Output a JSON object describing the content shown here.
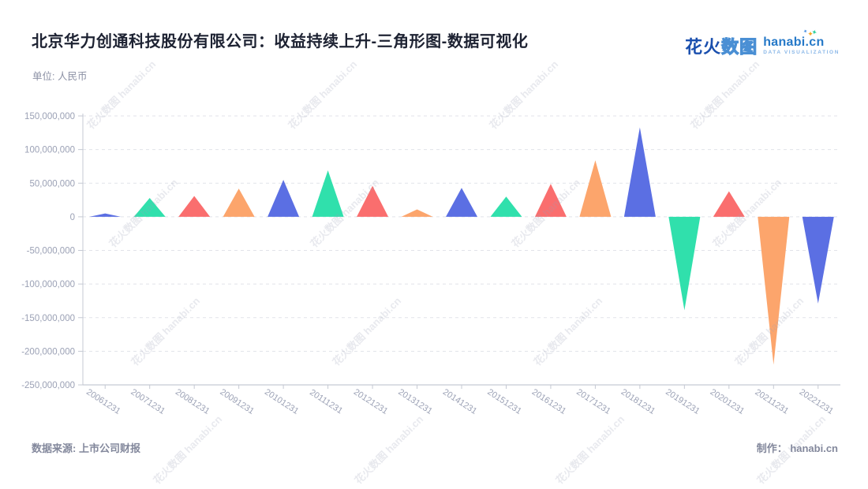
{
  "header": {
    "title": "北京华力创通科技股份有限公司：收益持续上升-三角形图-数据可视化",
    "subtitle": "单位: 人民币"
  },
  "logo": {
    "zh_primary": "花火",
    "zh_secondary": "数图",
    "domain": "hanabi.cn",
    "tagline": "DATA VISUALIZATION"
  },
  "watermark_text": "花火数图 hanabi.cn",
  "footer": {
    "source": "数据来源: 上市公司财报",
    "credit": "制作： hanabi.cn"
  },
  "chart_data": {
    "type": "bar",
    "variant": "triangle-marks",
    "title": "北京华力创通科技股份有限公司：收益持续上升-三角形图-数据可视化",
    "unit_label": "单位: 人民币",
    "xlabel": "",
    "ylabel": "",
    "categories": [
      "20061231",
      "20071231",
      "20081231",
      "20091231",
      "20101231",
      "20111231",
      "20121231",
      "20131231",
      "20141231",
      "20151231",
      "20161231",
      "20171231",
      "20181231",
      "20191231",
      "20201231",
      "20211231",
      "20221231"
    ],
    "values": [
      5000000,
      28000000,
      31000000,
      42000000,
      55000000,
      69000000,
      46000000,
      11000000,
      43000000,
      30000000,
      49000000,
      84000000,
      133000000,
      -139000000,
      38000000,
      -220000000,
      -129000000
    ],
    "palette_cycle": [
      "#5B6FE3",
      "#30E0AC",
      "#FA6E6E",
      "#FCA56C"
    ],
    "ylim": [
      -250000000,
      150000000
    ],
    "ytick_interval": 50000000,
    "ytick_labels": [
      "150,000,000",
      "100,000,000",
      "50,000,000",
      "0",
      "-50,000,000",
      "-100,000,000",
      "-150,000,000",
      "-200,000,000",
      "-250,000,000"
    ],
    "grid": "dashed-horizontal",
    "legend_position": "none",
    "axis_color": "#c5c9d3",
    "grid_color": "#e1e3e9",
    "tick_label_color": "#9ba1b5"
  }
}
